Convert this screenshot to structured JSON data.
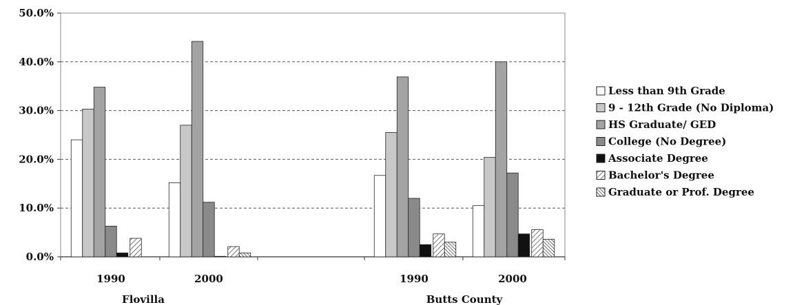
{
  "chart_data": {
    "type": "bar",
    "title": "",
    "xlabel": "",
    "ylabel": "",
    "ylim": [
      0,
      50
    ],
    "y_ticks": [
      "0.0%",
      "10.0%",
      "20.0%",
      "30.0%",
      "40.0%",
      "50.0%"
    ],
    "grid": true,
    "legend_position": "right",
    "groups": [
      {
        "label": "Flovilla",
        "categories": [
          "1990",
          "2000"
        ]
      },
      {
        "label": "Butts County",
        "categories": [
          "1990",
          "2000"
        ]
      }
    ],
    "categories": [
      "Flovilla 1990",
      "Flovilla 2000",
      "Butts County 1990",
      "Butts County 2000"
    ],
    "category_labels": [
      "1990",
      "2000",
      "1990",
      "2000"
    ],
    "series": [
      {
        "name": "Less than 9th Grade",
        "color": "#ffffff",
        "pattern": "solid",
        "values": [
          24.0,
          15.2,
          16.7,
          10.5
        ]
      },
      {
        "name": "9 - 12th Grade (No Diploma)",
        "color": "#c8c8c8",
        "pattern": "solid",
        "values": [
          30.3,
          27.0,
          25.5,
          20.4
        ]
      },
      {
        "name": "HS Graduate/ GED",
        "color": "#a3a3a3",
        "pattern": "solid",
        "values": [
          34.8,
          44.2,
          36.9,
          40.0
        ]
      },
      {
        "name": "College (No Degree)",
        "color": "#8a8a8a",
        "pattern": "solid",
        "values": [
          6.3,
          11.2,
          12.0,
          17.2
        ]
      },
      {
        "name": "Associate Degree",
        "color": "#111111",
        "pattern": "solid",
        "values": [
          0.8,
          0.1,
          2.5,
          4.7
        ]
      },
      {
        "name": "Bachelor's Degree",
        "color": "#ffffff",
        "pattern": "diag",
        "values": [
          3.8,
          2.1,
          4.7,
          5.6
        ]
      },
      {
        "name": "Graduate or Prof. Degree",
        "color": "#ffffff",
        "pattern": "diag-dense",
        "values": [
          0.0,
          0.8,
          3.0,
          3.6
        ]
      }
    ]
  }
}
